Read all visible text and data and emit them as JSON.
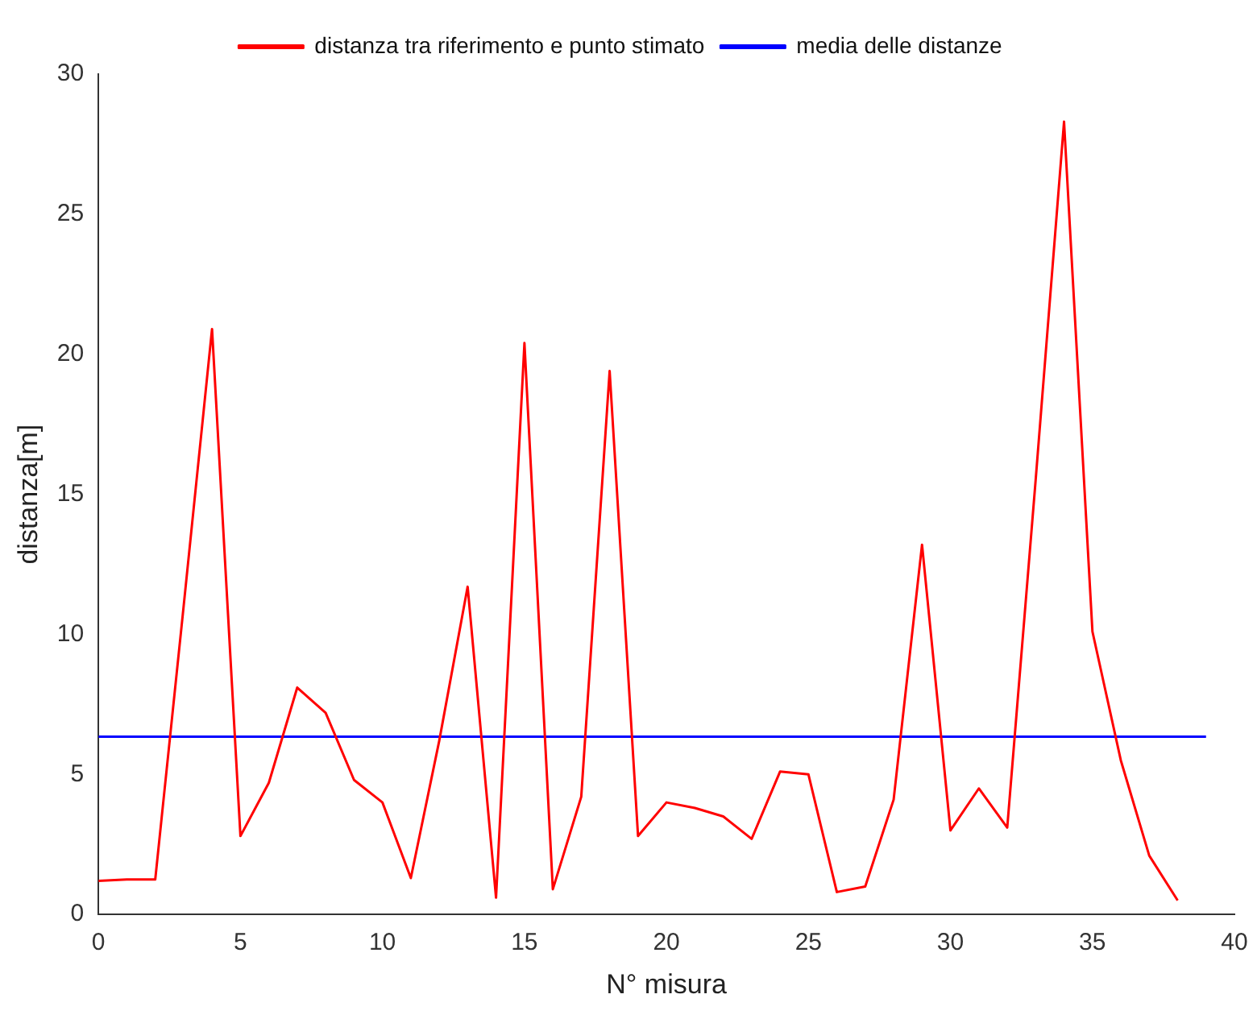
{
  "chart_data": {
    "type": "line",
    "xlabel": "N° misura",
    "ylabel": "distanza[m]",
    "xlim": [
      0,
      40
    ],
    "ylim": [
      0,
      30
    ],
    "xticks": [
      0,
      5,
      10,
      15,
      20,
      25,
      30,
      35,
      40
    ],
    "yticks": [
      0,
      5,
      10,
      15,
      20,
      25,
      30
    ],
    "grid": false,
    "legend": "top",
    "marker": "none",
    "line_style": "solid",
    "series": [
      {
        "name": "distanza tra riferimento e punto stimato",
        "color": "#ff0000",
        "x": [
          0,
          1,
          2,
          3,
          4,
          5,
          6,
          7,
          8,
          9,
          10,
          11,
          12,
          13,
          14,
          15,
          16,
          17,
          18,
          19,
          20,
          21,
          22,
          23,
          24,
          25,
          26,
          27,
          28,
          29,
          30,
          31,
          32,
          33,
          34,
          35,
          36,
          37,
          38
        ],
        "values": [
          1.2,
          1.25,
          1.25,
          11.0,
          20.9,
          2.8,
          4.7,
          8.1,
          7.2,
          4.8,
          4.0,
          1.3,
          6.2,
          11.7,
          0.6,
          20.4,
          0.9,
          4.2,
          19.4,
          2.8,
          4.0,
          3.8,
          3.5,
          2.7,
          5.1,
          5.0,
          0.8,
          1.0,
          4.1,
          13.2,
          3.0,
          4.5,
          3.1,
          15.5,
          28.3,
          10.1,
          5.5,
          2.1,
          0.5
        ]
      },
      {
        "name": "media delle distanze",
        "color": "#0000ff",
        "x": [
          0,
          39
        ],
        "values": [
          6.35,
          6.35
        ]
      }
    ]
  }
}
